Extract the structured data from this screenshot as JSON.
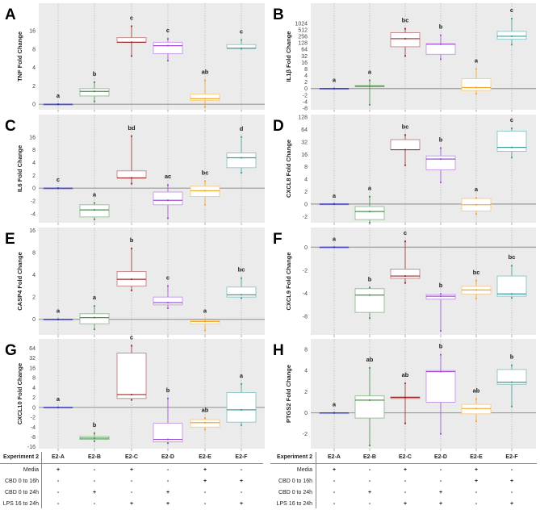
{
  "groups": [
    "E2-A",
    "E2-B",
    "E2-C",
    "E2-D",
    "E2-E",
    "E2-F"
  ],
  "colors": {
    "E2-A": "#3b3bc4",
    "E2-B": "#4a8f4a",
    "E2-C": "#9b2f2f",
    "E2-D": "#a04fd4",
    "E2-E": "#f0a830",
    "E2-F": "#3a9e9e",
    "background": "#ebebeb",
    "zero_line": "#9a9a9a"
  },
  "chart_data": [
    {
      "type": "box",
      "panel": "A",
      "ylabel": "TNF Fold Change",
      "y_ticks": [
        0,
        2,
        4,
        8,
        16
      ],
      "ylim": [
        -0.6,
        28
      ],
      "grid": "vertical dotted",
      "boxes": [
        {
          "group": "E2-A",
          "letter": "a",
          "q1": 0,
          "median": 0,
          "q3": 0,
          "lo": 0,
          "hi": 0
        },
        {
          "group": "E2-B",
          "letter": "b",
          "q1": 0.9,
          "median": 1.4,
          "q3": 1.7,
          "lo": 0.3,
          "hi": 2.4
        },
        {
          "group": "E2-C",
          "letter": "c",
          "q1": 11,
          "median": 11,
          "q3": 13,
          "lo": 6.5,
          "hi": 18
        },
        {
          "group": "E2-D",
          "letter": "c",
          "q1": 7,
          "median": 9.5,
          "q3": 11,
          "lo": 5.5,
          "hi": 12.5
        },
        {
          "group": "E2-E",
          "letter": "ab",
          "q1": 0.4,
          "median": 0.6,
          "q3": 1.1,
          "lo": -0.3,
          "hi": 2.6
        },
        {
          "group": "E2-F",
          "letter": "c",
          "q1": 8.4,
          "median": 8.4,
          "q3": 10,
          "lo": 8.2,
          "hi": 12
        }
      ]
    },
    {
      "type": "box",
      "panel": "B",
      "ylabel": "IL1β Fold Change",
      "y_ticks": [
        -8,
        -4,
        -2,
        0,
        2,
        4,
        8,
        16,
        32,
        64,
        128,
        256,
        512,
        1024
      ],
      "ylim": [
        -9,
        2600
      ],
      "grid": "vertical dotted",
      "boxes": [
        {
          "group": "E2-A",
          "letter": "a",
          "q1": 0,
          "median": 0,
          "q3": 0,
          "lo": 0,
          "hi": 0
        },
        {
          "group": "E2-B",
          "letter": "a",
          "q1": 0.6,
          "median": 0.7,
          "q3": 0.9,
          "lo": -6,
          "hi": 2.5
        },
        {
          "group": "E2-C",
          "letter": "bc",
          "q1": 90,
          "median": 210,
          "q3": 400,
          "lo": 32,
          "hi": 600
        },
        {
          "group": "E2-D",
          "letter": "b",
          "q1": 40,
          "median": 115,
          "q3": 118,
          "lo": 24,
          "hi": 300
        },
        {
          "group": "E2-E",
          "letter": "a",
          "q1": -0.6,
          "median": 0.3,
          "q3": 3,
          "lo": -1.6,
          "hi": 8
        },
        {
          "group": "E2-F",
          "letter": "c",
          "q1": 200,
          "median": 260,
          "q3": 450,
          "lo": 110,
          "hi": 1400
        }
      ]
    },
    {
      "type": "box",
      "panel": "C",
      "ylabel": "IL6 Fold Change",
      "y_ticks": [
        -4,
        -2,
        0,
        2,
        4,
        8,
        16
      ],
      "ylim": [
        -5.4,
        30
      ],
      "grid": "vertical dotted",
      "boxes": [
        {
          "group": "E2-A",
          "letter": "c",
          "q1": 0,
          "median": 0,
          "q3": 0,
          "lo": 0,
          "hi": 0
        },
        {
          "group": "E2-B",
          "letter": "a",
          "q1": -4.5,
          "median": -3.4,
          "q3": -2.6,
          "lo": -4.9,
          "hi": -2.3
        },
        {
          "group": "E2-C",
          "letter": "bd",
          "q1": 1.6,
          "median": 1.6,
          "q3": 2.7,
          "lo": 0.7,
          "hi": 16.5
        },
        {
          "group": "E2-D",
          "letter": "ac",
          "q1": -2.6,
          "median": -1.9,
          "q3": -0.6,
          "lo": -4.7,
          "hi": 0.5
        },
        {
          "group": "E2-E",
          "letter": "bc",
          "q1": -1.3,
          "median": -0.4,
          "q3": 0.3,
          "lo": -2.6,
          "hi": 1.1
        },
        {
          "group": "E2-F",
          "letter": "d",
          "q1": 3.2,
          "median": 5.5,
          "q3": 7,
          "lo": 2.4,
          "hi": 16
        }
      ]
    },
    {
      "type": "box",
      "panel": "D",
      "ylabel": "CXCL8 Fold Change",
      "y_ticks": [
        -2,
        0,
        2,
        4,
        8,
        16,
        32,
        64,
        128
      ],
      "ylim": [
        -3,
        141
      ],
      "grid": "vertical dotted",
      "boxes": [
        {
          "group": "E2-A",
          "letter": "a",
          "q1": 0,
          "median": 0,
          "q3": 0,
          "lo": 0,
          "hi": 0
        },
        {
          "group": "E2-B",
          "letter": "a",
          "q1": -2.5,
          "median": -1.2,
          "q3": -0.4,
          "lo": -3,
          "hi": 1.2
        },
        {
          "group": "E2-C",
          "letter": "bc",
          "q1": 22,
          "median": 22,
          "q3": 38,
          "lo": 9,
          "hi": 50
        },
        {
          "group": "E2-D",
          "letter": "b",
          "q1": 7,
          "median": 13,
          "q3": 15,
          "lo": 3.5,
          "hi": 24
        },
        {
          "group": "E2-E",
          "letter": "a",
          "q1": -1.1,
          "median": -0.1,
          "q3": 0.9,
          "lo": -1.6,
          "hi": 1
        },
        {
          "group": "E2-F",
          "letter": "c",
          "q1": 20,
          "median": 25,
          "q3": 60,
          "lo": 14,
          "hi": 70
        }
      ]
    },
    {
      "type": "box",
      "panel": "E",
      "ylabel": "CASP4 Fold Change",
      "y_ticks": [
        0,
        2,
        4,
        8,
        16
      ],
      "ylim": [
        -1.4,
        17
      ],
      "grid": "vertical dotted",
      "boxes": [
        {
          "group": "E2-A",
          "letter": "a",
          "q1": 0,
          "median": 0,
          "q3": 0,
          "lo": 0,
          "hi": 0
        },
        {
          "group": "E2-B",
          "letter": "a",
          "q1": -0.4,
          "median": 0.15,
          "q3": 0.5,
          "lo": -0.9,
          "hi": 1.2
        },
        {
          "group": "E2-C",
          "letter": "b",
          "q1": 3,
          "median": 3.6,
          "q3": 4.6,
          "lo": 2.6,
          "hi": 9.5
        },
        {
          "group": "E2-D",
          "letter": "c",
          "q1": 1.3,
          "median": 1.5,
          "q3": 2,
          "lo": 1,
          "hi": 3
        },
        {
          "group": "E2-E",
          "letter": "a",
          "q1": -0.4,
          "median": -0.2,
          "q3": -0.1,
          "lo": -1,
          "hi": 0
        },
        {
          "group": "E2-F",
          "letter": "bc",
          "q1": 2,
          "median": 2.2,
          "q3": 2.9,
          "lo": 1.9,
          "hi": 3.7
        }
      ]
    },
    {
      "type": "box",
      "panel": "F",
      "ylabel": "CXCL9 Fold Change",
      "y_ticks": [
        -8,
        -4,
        -2,
        0
      ],
      "ylim": [
        -11.2,
        1.7
      ],
      "grid": "vertical dotted",
      "boxes": [
        {
          "group": "E2-A",
          "letter": "a",
          "q1": 0,
          "median": 0,
          "q3": 0,
          "lo": 0,
          "hi": 0
        },
        {
          "group": "E2-B",
          "letter": "b",
          "q1": -7.3,
          "median": -4.3,
          "q3": -3.6,
          "lo": -8.3,
          "hi": -3.5
        },
        {
          "group": "E2-C",
          "letter": "c",
          "q1": -2.7,
          "median": -2.5,
          "q3": -1.9,
          "lo": -3.1,
          "hi": 0.5
        },
        {
          "group": "E2-D",
          "letter": "b",
          "q1": -5,
          "median": -4.5,
          "q3": -4.2,
          "lo": -10.5,
          "hi": -4.1
        },
        {
          "group": "E2-E",
          "letter": "bc",
          "q1": -4.1,
          "median": -3.7,
          "q3": -3.4,
          "lo": -4.9,
          "hi": -2.9
        },
        {
          "group": "E2-F",
          "letter": "bc",
          "q1": -4.5,
          "median": -4.1,
          "q3": -2.5,
          "lo": -4.8,
          "hi": -1.6
        }
      ]
    },
    {
      "type": "box",
      "panel": "G",
      "ylabel": "CXCL10 Fold Change",
      "y_ticks": [
        -16,
        -8,
        -4,
        -2,
        0,
        2,
        4,
        8,
        16,
        32,
        64
      ],
      "ylim": [
        -17.5,
        94
      ],
      "grid": "vertical dotted",
      "boxes": [
        {
          "group": "E2-A",
          "letter": "a",
          "q1": 0,
          "median": 0,
          "q3": 0,
          "lo": 0,
          "hi": 0
        },
        {
          "group": "E2-B",
          "letter": "b",
          "q1": -10,
          "median": -9,
          "q3": -7.8,
          "lo": -11.5,
          "hi": -6.5
        },
        {
          "group": "E2-C",
          "letter": "c",
          "q1": 1.8,
          "median": 2.6,
          "q3": 48,
          "lo": 1.5,
          "hi": 72
        },
        {
          "group": "E2-D",
          "letter": "b",
          "q1": -12,
          "median": -10,
          "q3": -3.2,
          "lo": -13,
          "hi": 1.8
        },
        {
          "group": "E2-E",
          "letter": "ab",
          "q1": -4,
          "median": -3.1,
          "q3": -2.5,
          "lo": -5,
          "hi": -2.2
        },
        {
          "group": "E2-F",
          "letter": "a",
          "q1": -3,
          "median": -0.5,
          "q3": 3,
          "lo": -3.6,
          "hi": 5.5
        }
      ]
    },
    {
      "type": "box",
      "panel": "H",
      "ylabel": "PTGS2 Fold Change",
      "y_ticks": [
        -2,
        0,
        2,
        4,
        8
      ],
      "ylim": [
        -3.4,
        10
      ],
      "grid": "vertical dotted",
      "boxes": [
        {
          "group": "E2-A",
          "letter": "a",
          "q1": 0,
          "median": 0,
          "q3": 0,
          "lo": 0,
          "hi": 0
        },
        {
          "group": "E2-B",
          "letter": "ab",
          "q1": -0.5,
          "median": 1.2,
          "q3": 1.6,
          "lo": -3.1,
          "hi": 4.5
        },
        {
          "group": "E2-C",
          "letter": "ab",
          "q1": 1.35,
          "median": 1.45,
          "q3": 1.5,
          "lo": -1,
          "hi": 2.8
        },
        {
          "group": "E2-D",
          "letter": "b",
          "q1": 1,
          "median": 3.9,
          "q3": 4,
          "lo": -2,
          "hi": 7
        },
        {
          "group": "E2-E",
          "letter": "ab",
          "q1": -0.1,
          "median": 0.4,
          "q3": 0.8,
          "lo": -0.8,
          "hi": 1.3
        },
        {
          "group": "E2-F",
          "letter": "b",
          "q1": 2.7,
          "median": 2.9,
          "q3": 4.2,
          "lo": 0.6,
          "hi": 5
        }
      ]
    }
  ],
  "table": {
    "header": "Experiment 2",
    "rows": [
      {
        "label": "Media",
        "values": [
          "+",
          "-",
          "+",
          "-",
          "+",
          "-"
        ]
      },
      {
        "label": "CBD 0 to 16h",
        "values": [
          "-",
          "-",
          "-",
          "-",
          "+",
          "+"
        ]
      },
      {
        "label": "CBD 0 to 24h",
        "values": [
          "-",
          "+",
          "-",
          "+",
          "-",
          "-"
        ]
      },
      {
        "label": "LPS 16 to 24h",
        "values": [
          "-",
          "-",
          "+",
          "+",
          "-",
          "+"
        ]
      }
    ]
  }
}
